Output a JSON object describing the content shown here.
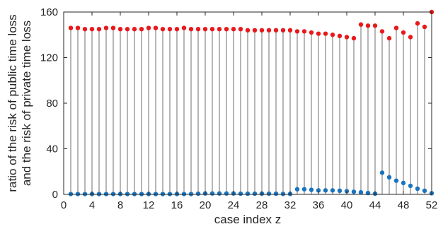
{
  "chart_data": {
    "type": "scatter",
    "subtype": "stem",
    "title": "",
    "xlabel": "case index z",
    "ylabel": [
      "ratio of the risk of public time loss",
      "and the risk of private time loss"
    ],
    "xlim": [
      0,
      52
    ],
    "ylim": [
      0,
      160
    ],
    "xticks": [
      0,
      4,
      8,
      12,
      16,
      20,
      24,
      28,
      32,
      36,
      40,
      44,
      48,
      52
    ],
    "yticks": [
      0,
      40,
      80,
      120,
      160
    ],
    "grid": false,
    "legend": "none",
    "x": [
      1,
      2,
      3,
      4,
      5,
      6,
      7,
      8,
      9,
      10,
      11,
      12,
      13,
      14,
      15,
      16,
      17,
      18,
      19,
      20,
      21,
      22,
      23,
      24,
      25,
      26,
      27,
      28,
      29,
      30,
      31,
      32,
      33,
      34,
      35,
      36,
      37,
      38,
      39,
      40,
      41,
      42,
      43,
      44,
      45,
      46,
      47,
      48,
      49,
      50,
      51,
      52
    ],
    "series": [
      {
        "color": "#e8191c",
        "stem_color": "#6e6e6e",
        "values": [
          146,
          146,
          145,
          145,
          145,
          146,
          146,
          145,
          145,
          145,
          145,
          146,
          146,
          145,
          145,
          145,
          146,
          145,
          145,
          145,
          145,
          145,
          145,
          145,
          145,
          144,
          144,
          144,
          144,
          144,
          144,
          144,
          143,
          143,
          142,
          141,
          141,
          140,
          139,
          138,
          137,
          149,
          148,
          148,
          143,
          137,
          146,
          142,
          138,
          150,
          147,
          160
        ]
      },
      {
        "color": "#1a74bd",
        "stem_color": "#6e6e6e",
        "values": [
          0.3,
          0.3,
          0.3,
          0.3,
          0.3,
          0.3,
          0.3,
          0.3,
          0.3,
          0.3,
          0.3,
          0.3,
          0.3,
          0.3,
          0.3,
          0.3,
          0.3,
          0.3,
          0.6,
          0.8,
          0.8,
          0.8,
          0.8,
          0.8,
          0.6,
          0.6,
          0.6,
          0.6,
          0.6,
          0.6,
          0.4,
          0.4,
          4.5,
          4.5,
          4,
          3.5,
          3.5,
          3.5,
          3.2,
          2.8,
          2.3,
          1.8,
          1.2,
          0.6,
          19,
          15,
          12,
          10,
          7.5,
          5,
          3.2,
          1
        ]
      }
    ]
  }
}
